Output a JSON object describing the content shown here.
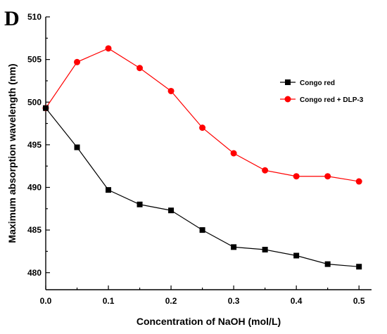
{
  "panel_label": "D",
  "chart_data": {
    "type": "line",
    "title": "",
    "xlabel": "Concentration of NaOH (mol/L)",
    "ylabel": "Maximum absorption wavelength (nm)",
    "xlim": [
      0.0,
      0.52
    ],
    "ylim": [
      478,
      510
    ],
    "x_ticks": [
      0.0,
      0.1,
      0.2,
      0.3,
      0.4,
      0.5
    ],
    "x_tick_labels": [
      "0.0",
      "0.1",
      "0.2",
      "0.3",
      "0.4",
      "0.5"
    ],
    "y_ticks": [
      480,
      485,
      490,
      495,
      500,
      505,
      510
    ],
    "y_tick_labels": [
      "480",
      "485",
      "490",
      "495",
      "500",
      "505",
      "510"
    ],
    "grid": false,
    "legend_position": "right",
    "x": [
      0.0,
      0.05,
      0.1,
      0.15,
      0.2,
      0.25,
      0.3,
      0.35,
      0.4,
      0.45,
      0.5
    ],
    "series": [
      {
        "name": "Congo red",
        "color": "#000000",
        "marker": "square",
        "values": [
          499.3,
          494.7,
          489.7,
          488.0,
          487.3,
          485.0,
          483.0,
          482.7,
          482.0,
          481.0,
          480.7
        ]
      },
      {
        "name": "Congo red + DLP-3",
        "color": "#ff0000",
        "marker": "circle",
        "values": [
          499.3,
          504.7,
          506.3,
          504.0,
          501.3,
          497.0,
          494.0,
          492.0,
          491.3,
          491.3,
          490.7
        ]
      }
    ]
  }
}
